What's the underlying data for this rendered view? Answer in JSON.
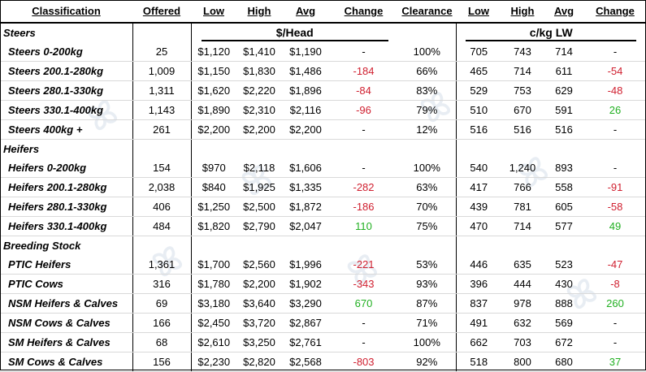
{
  "headers": {
    "classification": "Classification",
    "offered": "Offered",
    "low": "Low",
    "high": "High",
    "avg": "Avg",
    "change": "Change",
    "clearance": "Clearance",
    "low2": "Low",
    "high2": "High",
    "avg2": "Avg",
    "change2": "Change"
  },
  "units": {
    "head": "$/Head",
    "kg": "c/kg LW"
  },
  "sections": {
    "steers": "Steers",
    "heifers": "Heifers",
    "breeding": "Breeding Stock"
  },
  "rows": [
    {
      "name": "Steers 0-200kg",
      "offered": "25",
      "low": "$1,120",
      "high": "$1,410",
      "avg": "$1,190",
      "change": "-",
      "clearance": "100%",
      "low2": "705",
      "high2": "743",
      "avg2": "714",
      "change2": "-"
    },
    {
      "name": "Steers 200.1-280kg",
      "offered": "1,009",
      "low": "$1,150",
      "high": "$1,830",
      "avg": "$1,486",
      "change": "-184",
      "clearance": "66%",
      "low2": "465",
      "high2": "714",
      "avg2": "611",
      "change2": "-54"
    },
    {
      "name": "Steers 280.1-330kg",
      "offered": "1,311",
      "low": "$1,620",
      "high": "$2,220",
      "avg": "$1,896",
      "change": "-84",
      "clearance": "83%",
      "low2": "529",
      "high2": "753",
      "avg2": "629",
      "change2": "-48"
    },
    {
      "name": "Steers 330.1-400kg",
      "offered": "1,143",
      "low": "$1,890",
      "high": "$2,310",
      "avg": "$2,116",
      "change": "-96",
      "clearance": "79%",
      "low2": "510",
      "high2": "670",
      "avg2": "591",
      "change2": "26"
    },
    {
      "name": "Steers 400kg +",
      "offered": "261",
      "low": "$2,200",
      "high": "$2,200",
      "avg": "$2,200",
      "change": "-",
      "clearance": "12%",
      "low2": "516",
      "high2": "516",
      "avg2": "516",
      "change2": "-"
    },
    {
      "name": "Heifers 0-200kg",
      "offered": "154",
      "low": "$970",
      "high": "$2,118",
      "avg": "$1,606",
      "change": "-",
      "clearance": "100%",
      "low2": "540",
      "high2": "1,240",
      "avg2": "893",
      "change2": "-"
    },
    {
      "name": "Heifers 200.1-280kg",
      "offered": "2,038",
      "low": "$840",
      "high": "$1,925",
      "avg": "$1,335",
      "change": "-282",
      "clearance": "63%",
      "low2": "417",
      "high2": "766",
      "avg2": "558",
      "change2": "-91"
    },
    {
      "name": "Heifers 280.1-330kg",
      "offered": "406",
      "low": "$1,250",
      "high": "$2,500",
      "avg": "$1,872",
      "change": "-186",
      "clearance": "70%",
      "low2": "439",
      "high2": "781",
      "avg2": "605",
      "change2": "-58"
    },
    {
      "name": "Heifers 330.1-400kg",
      "offered": "484",
      "low": "$1,820",
      "high": "$2,790",
      "avg": "$2,047",
      "change": "110",
      "clearance": "75%",
      "low2": "470",
      "high2": "714",
      "avg2": "577",
      "change2": "49"
    },
    {
      "name": "PTIC Heifers",
      "offered": "1,361",
      "low": "$1,700",
      "high": "$2,560",
      "avg": "$1,996",
      "change": "-221",
      "clearance": "53%",
      "low2": "446",
      "high2": "635",
      "avg2": "523",
      "change2": "-47"
    },
    {
      "name": "PTIC Cows",
      "offered": "316",
      "low": "$1,780",
      "high": "$2,200",
      "avg": "$1,902",
      "change": "-343",
      "clearance": "93%",
      "low2": "396",
      "high2": "444",
      "avg2": "430",
      "change2": "-8"
    },
    {
      "name": "NSM Heifers & Calves",
      "offered": "69",
      "low": "$3,180",
      "high": "$3,640",
      "avg": "$3,290",
      "change": "670",
      "clearance": "87%",
      "low2": "837",
      "high2": "978",
      "avg2": "888",
      "change2": "260"
    },
    {
      "name": "NSM Cows & Calves",
      "offered": "166",
      "low": "$2,450",
      "high": "$3,720",
      "avg": "$2,867",
      "change": "-",
      "clearance": "71%",
      "low2": "491",
      "high2": "632",
      "avg2": "569",
      "change2": "-"
    },
    {
      "name": "SM Heifers & Calves",
      "offered": "68",
      "low": "$2,610",
      "high": "$3,250",
      "avg": "$2,761",
      "change": "-",
      "clearance": "100%",
      "low2": "662",
      "high2": "703",
      "avg2": "672",
      "change2": "-"
    },
    {
      "name": "SM Cows & Calves",
      "offered": "156",
      "low": "$2,230",
      "high": "$2,820",
      "avg": "$2,568",
      "change": "-803",
      "clearance": "92%",
      "low2": "518",
      "high2": "800",
      "avg2": "680",
      "change2": "37"
    }
  ],
  "colors": {
    "negative": "#d02030",
    "positive": "#22b022",
    "watermark": "#d6e0ea"
  }
}
